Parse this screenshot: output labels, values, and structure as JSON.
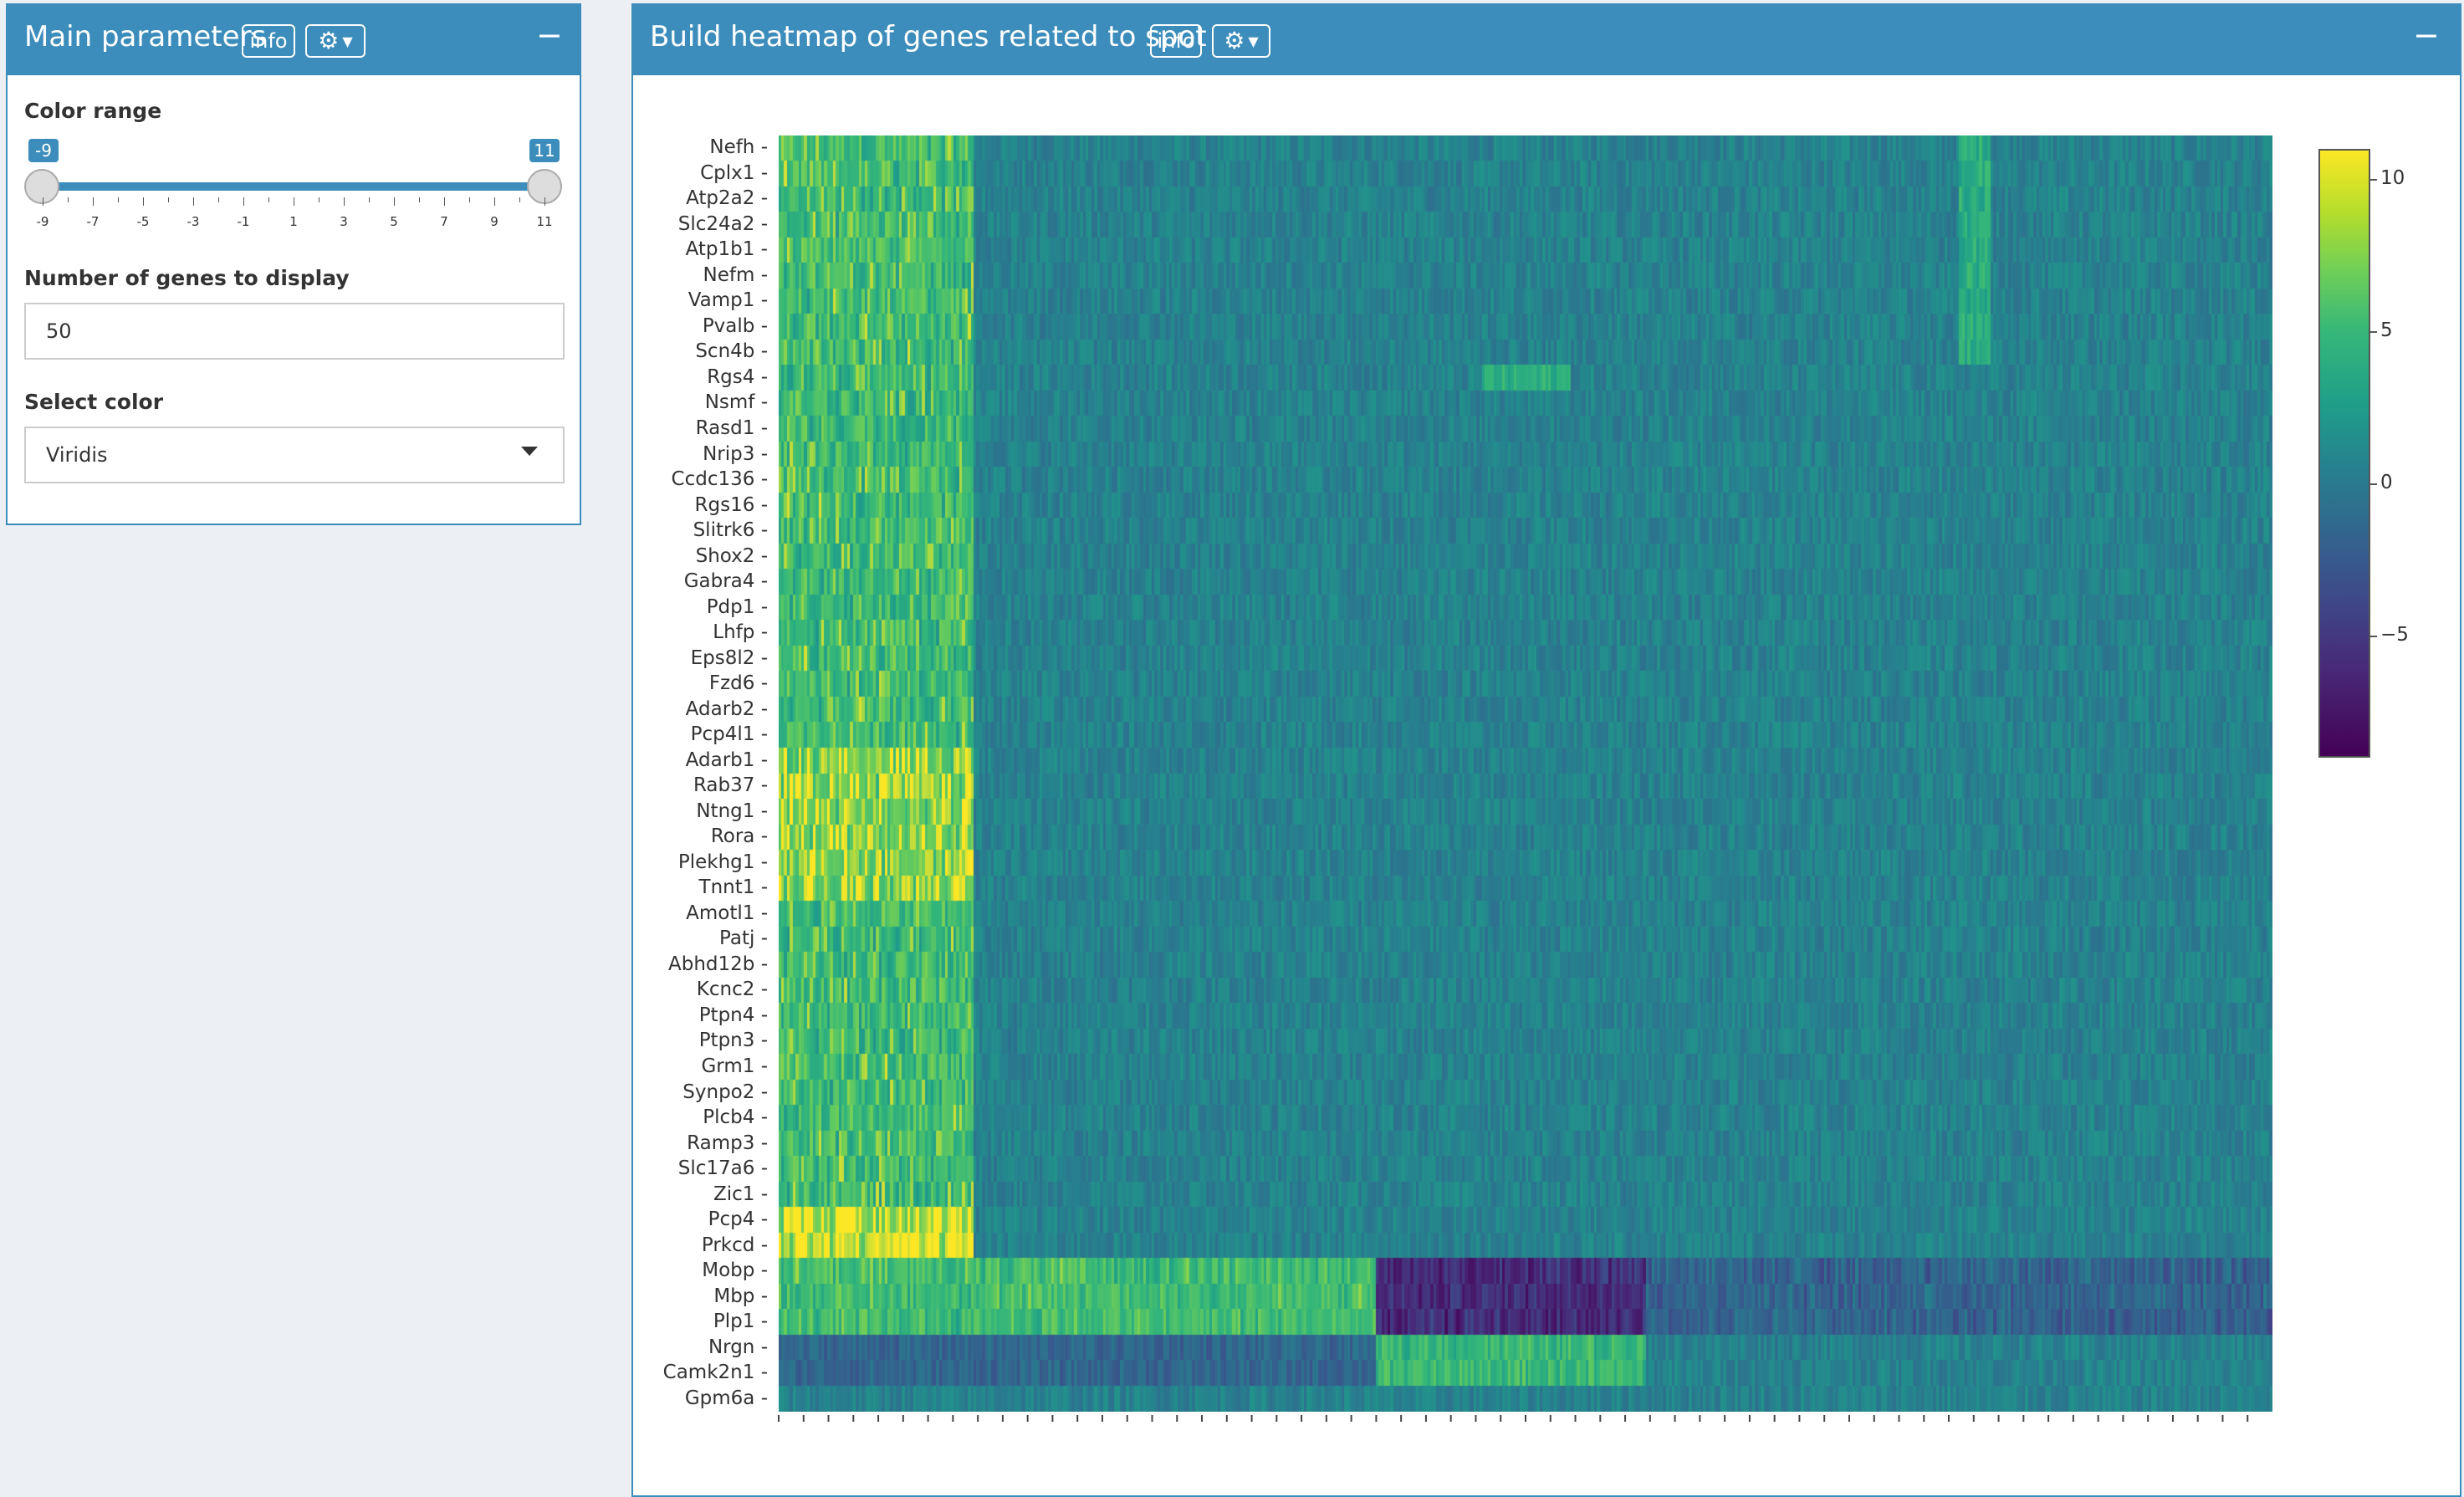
{
  "left_panel": {
    "title": "Main parameters",
    "info_label": "info",
    "color_range": {
      "label": "Color range",
      "min": -9,
      "max": 11,
      "from_label": "-9",
      "to_label": "11",
      "ticks": [
        "-9",
        "-7",
        "-5",
        "-3",
        "-1",
        "1",
        "3",
        "5",
        "7",
        "9",
        "11"
      ]
    },
    "num_genes": {
      "label": "Number of genes to display",
      "value": "50"
    },
    "color_select": {
      "label": "Select color",
      "value": "Viridis"
    }
  },
  "right_panel": {
    "title": "Build heatmap of genes related to spot",
    "info_label": "info"
  },
  "icons": {
    "settings": "gear-icon",
    "dropdown": "caret-down-icon",
    "collapse": "minus-icon"
  },
  "colors": {
    "header": "#3c8dbc",
    "background": "#ecf0f5"
  },
  "chart_data": {
    "type": "heatmap",
    "genes": [
      "Nefh",
      "Cplx1",
      "Atp2a2",
      "Slc24a2",
      "Atp1b1",
      "Nefm",
      "Vamp1",
      "Pvalb",
      "Scn4b",
      "Rgs4",
      "Nsmf",
      "Rasd1",
      "Nrip3",
      "Ccdc136",
      "Rgs16",
      "Slitrk6",
      "Shox2",
      "Gabra4",
      "Pdp1",
      "Lhfp",
      "Eps8l2",
      "Fzd6",
      "Adarb2",
      "Pcp4l1",
      "Adarb1",
      "Rab37",
      "Ntng1",
      "Rora",
      "Plekhg1",
      "Tnnt1",
      "Amotl1",
      "Patj",
      "Abhd12b",
      "Kcnc2",
      "Ptpn4",
      "Ptpn3",
      "Grm1",
      "Synpo2",
      "Plcb4",
      "Ramp3",
      "Slc17a6",
      "Zic1",
      "Pcp4",
      "Prkcd",
      "Mobp",
      "Mbp",
      "Plp1",
      "Nrgn",
      "Camk2n1",
      "Gpm6a"
    ],
    "colorscale": "Viridis",
    "colorbar_ticks": [
      "10",
      "5",
      "0",
      "−5"
    ],
    "colorbar_values": [
      10,
      5,
      0,
      -5
    ],
    "zmin": -9,
    "zmax": 11
  }
}
